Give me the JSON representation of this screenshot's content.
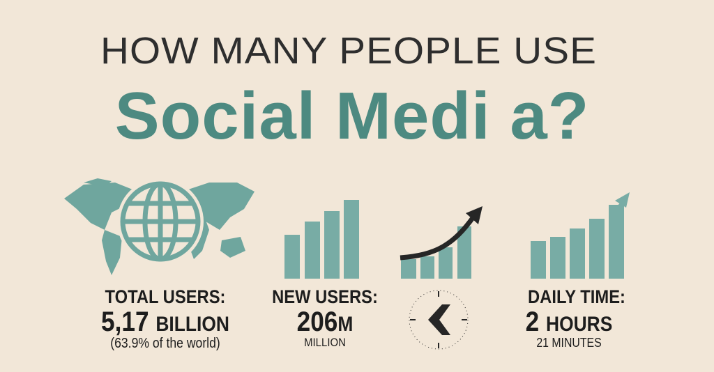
{
  "title": {
    "line1": "HOW MANY PEOPLE USE",
    "line2": "Social Medi a?"
  },
  "colors": {
    "background": "#f2e7d8",
    "accent": "#4d8a81",
    "bars": "#78aca5",
    "text": "#1d1d1d"
  },
  "stats": [
    {
      "label": "TOTAL USERS:",
      "value": "5,17",
      "unit": "BILLION",
      "note": "(63.9% of the world)",
      "icon": "world-map-globe-icon"
    },
    {
      "label": "NEW USERS:",
      "value": "206",
      "unit": "M",
      "note": "MILLION",
      "icon": "bar-chart-icon"
    },
    {
      "icon": "clock-icon"
    },
    {
      "label": "DAILY TIME:",
      "value": "2",
      "unit": "HOURS",
      "note": "21 MINUTES",
      "icon": "growth-chart-arrow-icon"
    }
  ]
}
